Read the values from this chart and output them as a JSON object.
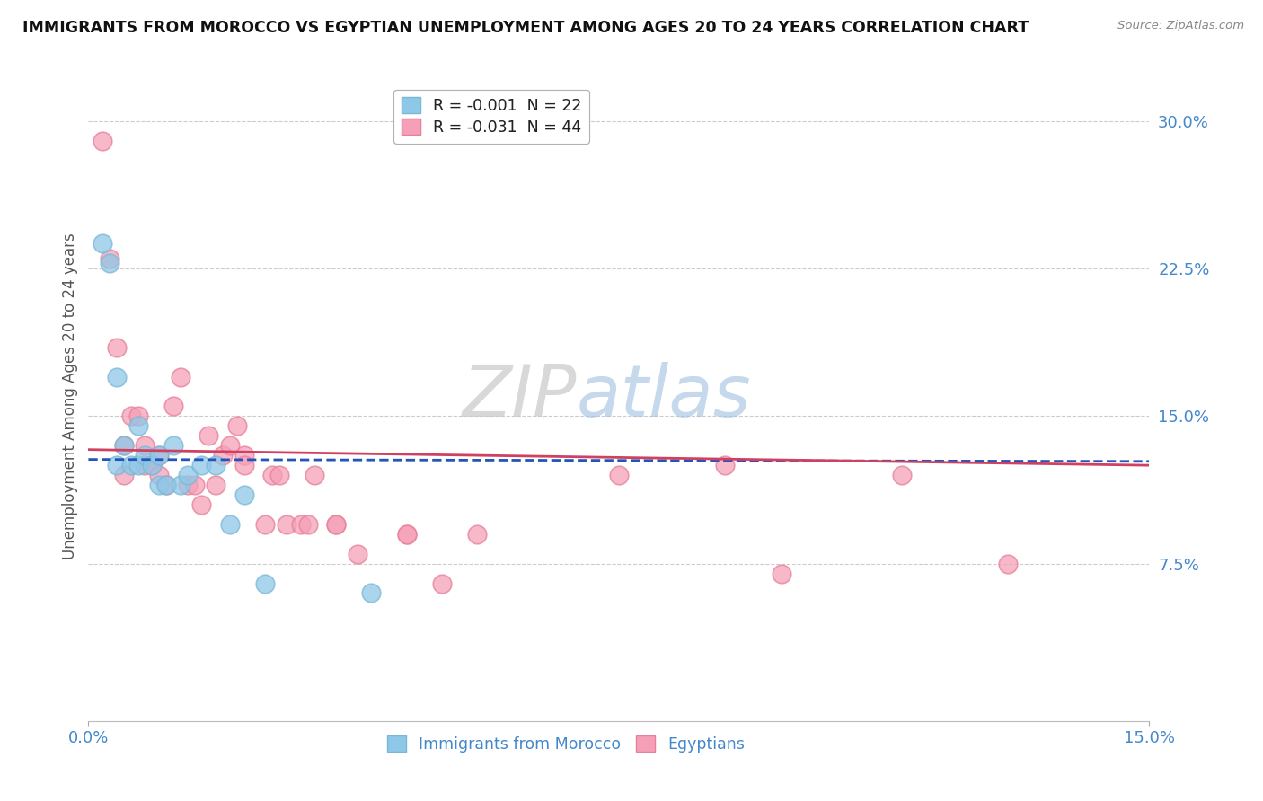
{
  "title": "IMMIGRANTS FROM MOROCCO VS EGYPTIAN UNEMPLOYMENT AMONG AGES 20 TO 24 YEARS CORRELATION CHART",
  "source": "Source: ZipAtlas.com",
  "ylabel": "Unemployment Among Ages 20 to 24 years",
  "xlim": [
    0.0,
    0.15
  ],
  "ylim": [
    -0.005,
    0.325
  ],
  "watermark_zip": "ZIP",
  "watermark_atlas": "atlas",
  "ytick_vals": [
    0.075,
    0.15,
    0.225,
    0.3
  ],
  "ytick_labels": [
    "7.5%",
    "15.0%",
    "22.5%",
    "30.0%"
  ],
  "xtick_vals": [
    0.0,
    0.15
  ],
  "xtick_labels": [
    "0.0%",
    "15.0%"
  ],
  "series1_label": "Immigrants from Morocco",
  "series2_label": "Egyptians",
  "series1_color": "#8ec8e8",
  "series2_color": "#f5a0b8",
  "series1_edge_color": "#7ab8d8",
  "series2_edge_color": "#e88098",
  "series1_line_color": "#2255bb",
  "series2_line_color": "#d04060",
  "series1_line_style": "--",
  "series2_line_style": "-",
  "legend_r1": "R = -0.001  N = 22",
  "legend_r2": "R = -0.031  N = 44",
  "morocco_x": [
    0.002,
    0.003,
    0.004,
    0.004,
    0.005,
    0.006,
    0.007,
    0.007,
    0.008,
    0.009,
    0.01,
    0.01,
    0.011,
    0.012,
    0.013,
    0.014,
    0.016,
    0.018,
    0.02,
    0.022,
    0.025,
    0.04
  ],
  "morocco_y": [
    0.238,
    0.228,
    0.17,
    0.125,
    0.135,
    0.125,
    0.145,
    0.125,
    0.13,
    0.125,
    0.13,
    0.115,
    0.115,
    0.135,
    0.115,
    0.12,
    0.125,
    0.125,
    0.095,
    0.11,
    0.065,
    0.06
  ],
  "egypt_x": [
    0.002,
    0.003,
    0.004,
    0.005,
    0.005,
    0.006,
    0.007,
    0.008,
    0.008,
    0.009,
    0.01,
    0.01,
    0.011,
    0.012,
    0.013,
    0.014,
    0.015,
    0.016,
    0.017,
    0.018,
    0.019,
    0.02,
    0.021,
    0.022,
    0.022,
    0.025,
    0.026,
    0.027,
    0.028,
    0.03,
    0.031,
    0.032,
    0.035,
    0.035,
    0.038,
    0.045,
    0.045,
    0.05,
    0.055,
    0.075,
    0.09,
    0.098,
    0.115,
    0.13
  ],
  "egypt_y": [
    0.29,
    0.23,
    0.185,
    0.135,
    0.12,
    0.15,
    0.15,
    0.135,
    0.125,
    0.125,
    0.13,
    0.12,
    0.115,
    0.155,
    0.17,
    0.115,
    0.115,
    0.105,
    0.14,
    0.115,
    0.13,
    0.135,
    0.145,
    0.13,
    0.125,
    0.095,
    0.12,
    0.12,
    0.095,
    0.095,
    0.095,
    0.12,
    0.095,
    0.095,
    0.08,
    0.09,
    0.09,
    0.065,
    0.09,
    0.12,
    0.125,
    0.07,
    0.12,
    0.075
  ]
}
